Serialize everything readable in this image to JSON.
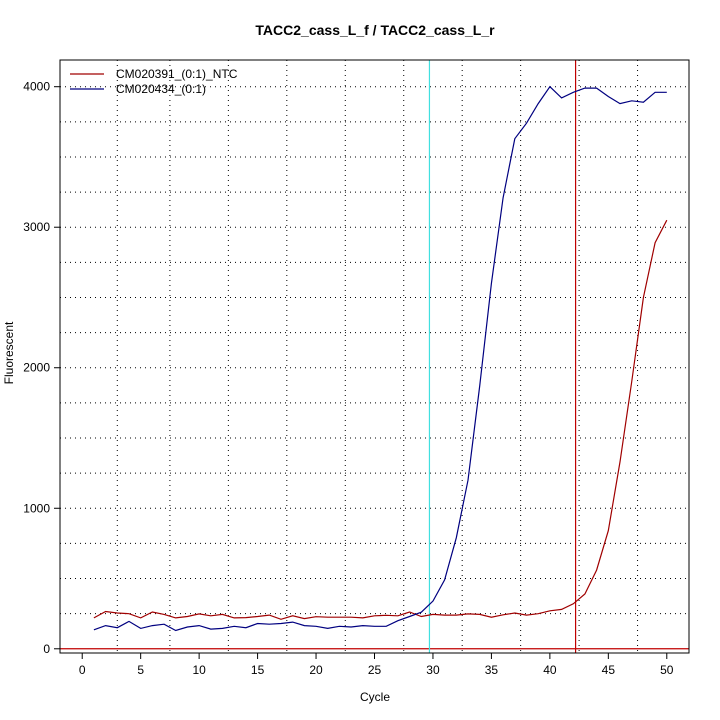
{
  "chart_data": {
    "type": "line",
    "title": "TACC2_cass_L_f / TACC2_cass_L_r",
    "xlabel": "Cycle",
    "ylabel": "Fluorescent",
    "xlim": [
      -1.9,
      51.9
    ],
    "ylim": [
      -30,
      4190
    ],
    "x_ticks": [
      0,
      5,
      10,
      15,
      20,
      25,
      30,
      35,
      40,
      45,
      50
    ],
    "x_tick_labels": [
      "0",
      "5",
      "10",
      "15",
      "20",
      "25",
      "30",
      "35",
      "40",
      "45",
      "50"
    ],
    "y_ticks": [
      0,
      1000,
      2000,
      3000,
      4000
    ],
    "y_tick_labels": [
      "0",
      "1000",
      "2000",
      "3000",
      "4000"
    ],
    "grid": true,
    "grid_x": [
      3,
      7.5,
      12.5,
      17.5,
      22.5,
      27.5,
      32.5,
      37.5,
      42.5,
      47.5
    ],
    "grid_y": [
      250,
      500,
      750,
      1000,
      1250,
      1500,
      1750,
      2000,
      2250,
      2500,
      2750,
      3000,
      3250,
      3500,
      3750,
      4000
    ],
    "legend_position": "top-left",
    "threshold_y": 0,
    "threshold_color": "#c00000",
    "vlines": [
      {
        "x": 29.7,
        "color": "#40e0e0"
      },
      {
        "x": 42.2,
        "color": "#c00000"
      }
    ],
    "series": [
      {
        "name": "CM020391_(0:1)_NTC",
        "color": "#a00000",
        "x": [
          1,
          2,
          3,
          4,
          5,
          6,
          7,
          8,
          9,
          10,
          11,
          12,
          13,
          14,
          15,
          16,
          17,
          18,
          19,
          20,
          21,
          22,
          23,
          24,
          25,
          26,
          27,
          28,
          29,
          30,
          31,
          32,
          33,
          34,
          35,
          36,
          37,
          38,
          39,
          40,
          41,
          42,
          43,
          44,
          45,
          46,
          47,
          48,
          49,
          50
        ],
        "values": [
          220,
          265,
          255,
          250,
          220,
          262,
          245,
          220,
          230,
          248,
          235,
          245,
          220,
          222,
          230,
          240,
          210,
          235,
          215,
          228,
          225,
          225,
          225,
          220,
          235,
          238,
          235,
          262,
          230,
          245,
          240,
          240,
          248,
          245,
          225,
          242,
          255,
          240,
          250,
          270,
          280,
          320,
          390,
          560,
          840,
          1330,
          1900,
          2500,
          2890,
          3050
        ]
      },
      {
        "name": "CM020434_(0:1)",
        "color": "#000080",
        "x": [
          1,
          2,
          3,
          4,
          5,
          6,
          7,
          8,
          9,
          10,
          11,
          12,
          13,
          14,
          15,
          16,
          17,
          18,
          19,
          20,
          21,
          22,
          23,
          24,
          25,
          26,
          27,
          28,
          29,
          30,
          31,
          32,
          33,
          34,
          35,
          36,
          37,
          38,
          39,
          40,
          41,
          42,
          43,
          44,
          45,
          46,
          47,
          48,
          49,
          50
        ],
        "values": [
          135,
          165,
          150,
          195,
          145,
          165,
          175,
          130,
          155,
          165,
          140,
          145,
          160,
          150,
          180,
          175,
          180,
          190,
          165,
          160,
          145,
          160,
          155,
          165,
          160,
          160,
          200,
          230,
          260,
          340,
          490,
          790,
          1200,
          1870,
          2600,
          3210,
          3630,
          3740,
          3880,
          4000,
          3920,
          3960,
          3990,
          3990,
          3930,
          3880,
          3900,
          3890,
          3960,
          3960
        ]
      }
    ]
  }
}
